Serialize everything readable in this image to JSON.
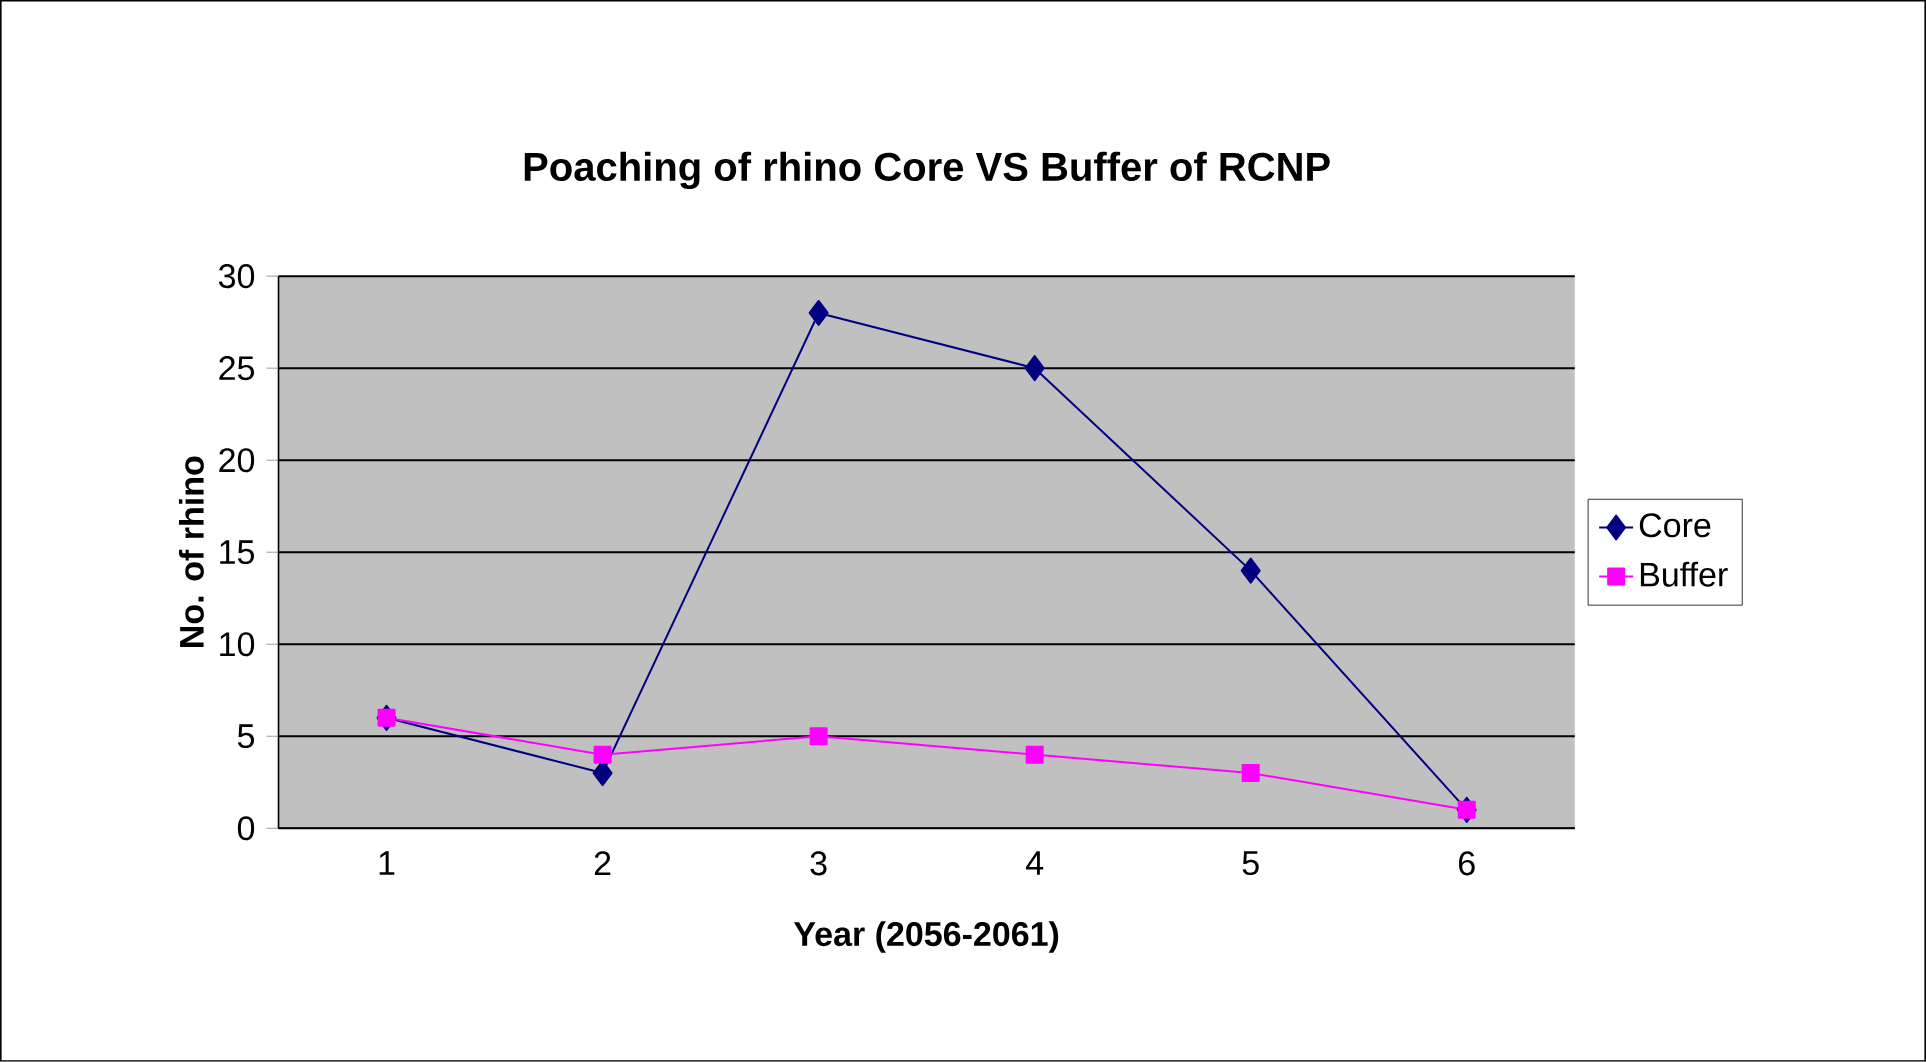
{
  "chart_data": {
    "type": "line",
    "title": "Poaching of rhino Core VS Buffer of RCNP",
    "xlabel": "Year (2056-2061)",
    "ylabel": "No. of rhino",
    "categories": [
      "1",
      "2",
      "3",
      "4",
      "5",
      "6"
    ],
    "series": [
      {
        "name": "Core",
        "color": "#000080",
        "marker": "diamond",
        "values": [
          6,
          3,
          28,
          25,
          14,
          1
        ]
      },
      {
        "name": "Buffer",
        "color": "#ff00ff",
        "marker": "square",
        "values": [
          6,
          4,
          5,
          4,
          3,
          1
        ]
      }
    ],
    "ylim": [
      0,
      30
    ],
    "yticks": [
      0,
      5,
      10,
      15,
      20,
      25,
      30
    ],
    "grid": "y",
    "legend": "right",
    "line_style": "solid"
  }
}
